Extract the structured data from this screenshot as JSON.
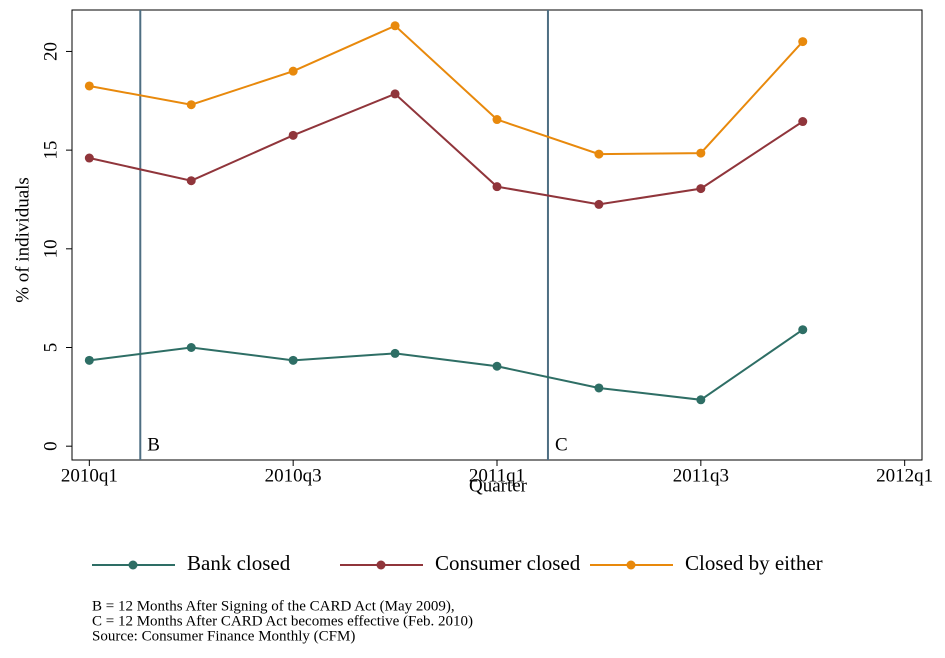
{
  "chart_data": {
    "type": "line",
    "categories": [
      "2010q1",
      null,
      "2010q3",
      null,
      "2011q1",
      null,
      "2011q3",
      null,
      "2012q1"
    ],
    "xlim": [
      -0.17,
      8.17
    ],
    "ylim": [
      -0.7,
      22.1
    ],
    "yticks": [
      0,
      5,
      10,
      15,
      20
    ],
    "x_label": "Quarter",
    "y_label": "% of individuals",
    "series": [
      {
        "name": "Bank closed",
        "color": "#2e6e65",
        "values": [
          4.35,
          5.0,
          4.35,
          4.7,
          4.05,
          2.95,
          2.35,
          5.9,
          null
        ]
      },
      {
        "name": "Consumer closed",
        "color": "#90353b",
        "values": [
          14.6,
          13.45,
          15.75,
          17.85,
          13.15,
          12.25,
          13.05,
          16.45,
          null
        ]
      },
      {
        "name": "Closed by either",
        "color": "#e8890c",
        "values": [
          18.25,
          17.3,
          19.0,
          21.3,
          16.55,
          14.8,
          14.85,
          20.5,
          null
        ]
      }
    ],
    "annotations": [
      {
        "label": "B",
        "x": 0.5
      },
      {
        "label": "C",
        "x": 4.5
      }
    ],
    "reference_line_color": "#4e6e82",
    "notes": [
      "B = 12 Months After Signing of the CARD Act (May 2009),",
      "C = 12 Months After CARD Act becomes effective (Feb. 2010)",
      "Source: Consumer Finance Monthly (CFM)"
    ],
    "legend": "bottom"
  }
}
